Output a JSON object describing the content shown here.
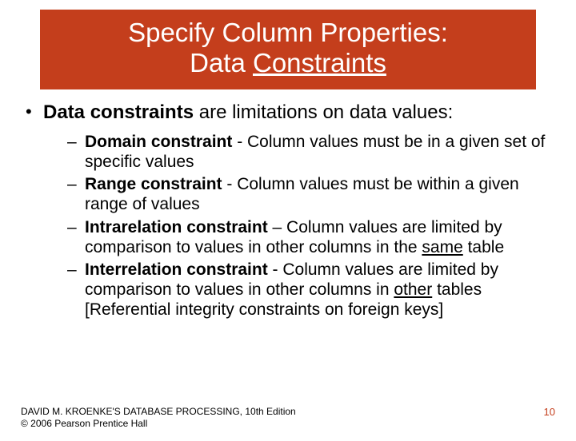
{
  "title_box": {
    "bg_color": "#c43e1c",
    "text_color": "#ffffff",
    "line1": "Specify Column Properties:",
    "line2_plain": "Data ",
    "line2_underlined": "Constraints"
  },
  "content": {
    "main_bullet": {
      "bold_lead": "Data constraints",
      "rest": " are limitations on data values:"
    },
    "sub_bullets": [
      {
        "bold_lead": "Domain constraint",
        "plain_dash": " -  Column values must be in a given set of specific values"
      },
      {
        "bold_lead": "Range constraint",
        "plain_dash": " -  Column values must be within a given range of values"
      },
      {
        "bold_lead": "Intrarelation constraint",
        "plain_part1": " – Column values are limited by comparison to values in other columns in the ",
        "underlined1": "same",
        "plain_part2": " table"
      },
      {
        "bold_lead": "Interrelation constraint",
        "plain_part1": " - Column values are limited by comparison to values in other columns in ",
        "underlined1": "other",
        "plain_part2": " tables [Referential integrity constraints on foreign keys]"
      }
    ]
  },
  "footer": {
    "line1": "DAVID M. KROENKE'S DATABASE PROCESSING, 10th Edition",
    "line2": "© 2006 Pearson Prentice Hall",
    "page_number": "10",
    "page_color": "#c43e1c"
  },
  "styling": {
    "body_bg": "#ffffff",
    "title_fontsize": 33,
    "main_bullet_fontsize": 24,
    "sub_bullet_fontsize": 21,
    "footer_fontsize": 12,
    "font_family": "Arial"
  }
}
